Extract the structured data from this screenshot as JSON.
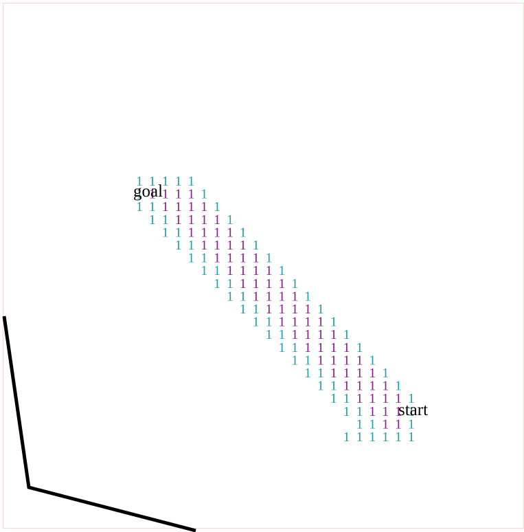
{
  "grid": {
    "cell_value": "1",
    "colors": {
      "core": "#8b1a8b",
      "margin": "#20a0a8",
      "frame": "#ffd6d6",
      "robot_arm": "#000000"
    }
  },
  "labels": {
    "goal": "goal",
    "start": "start"
  }
}
